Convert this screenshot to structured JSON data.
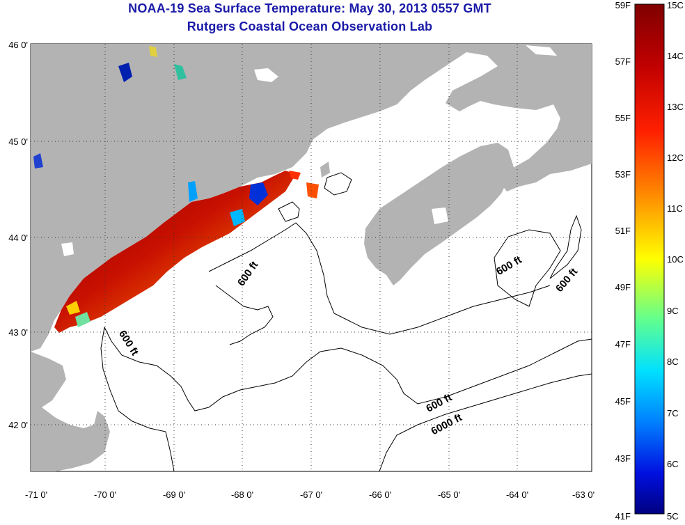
{
  "title_line1": "NOAA-19 Sea Surface Temperature:  May 30, 2013 0557 GMT",
  "title_line2": "Rutgers Coastal Ocean Observation Lab",
  "map": {
    "lat_ticks": [
      "46 0'",
      "45 0'",
      "44 0'",
      "43 0'",
      "42 0'"
    ],
    "lon_ticks": [
      "-71 0'",
      "-70 0'",
      "-69 0'",
      "-68 0'",
      "-67 0'",
      "-66 0'",
      "-65 0'",
      "-64 0'",
      "-63 0'"
    ],
    "contour_labels": [
      "600 ft",
      "600 ft",
      "600 ft",
      "600 ft",
      "600 ft",
      "6000 ft"
    ],
    "colors": {
      "land": "#b3b3b3",
      "ocean": "#ffffff",
      "grid": "#333333",
      "title": "#1a1aa8"
    }
  },
  "colorbar": {
    "fahrenheit_labels": [
      "59F",
      "57F",
      "55F",
      "53F",
      "51F",
      "49F",
      "47F",
      "45F",
      "43F",
      "41F"
    ],
    "celsius_labels": [
      "15C",
      "14C",
      "13C",
      "12C",
      "11C",
      "10C",
      "9C",
      "8C",
      "7C",
      "6C",
      "5C"
    ],
    "range_celsius": [
      5,
      15
    ],
    "range_fahrenheit": [
      41,
      59
    ]
  }
}
